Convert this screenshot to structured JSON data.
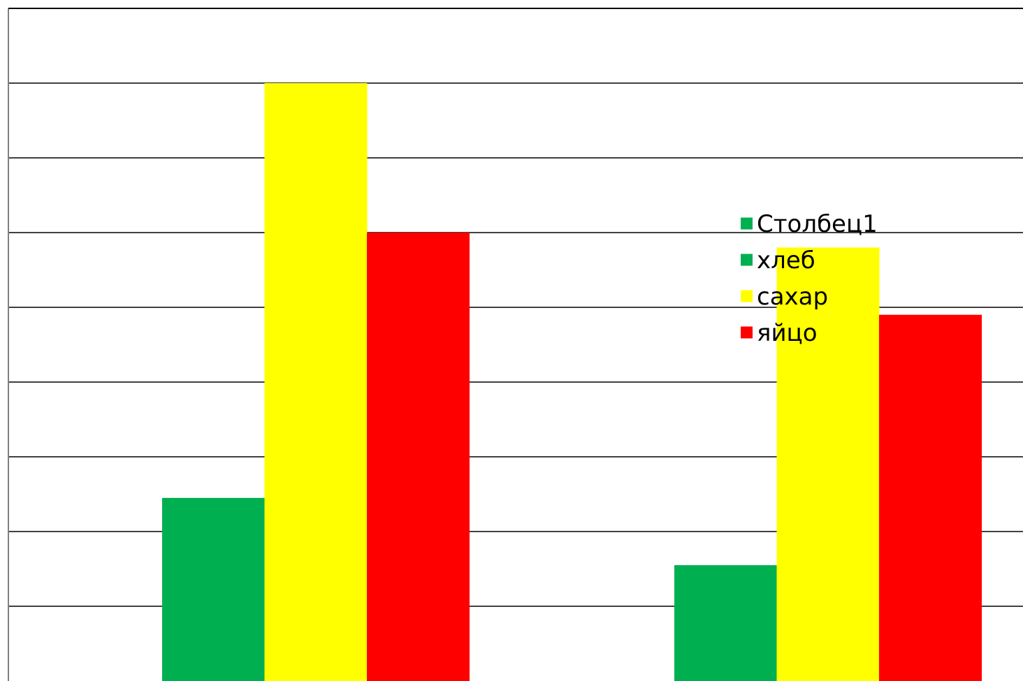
{
  "chart_data": {
    "type": "bar",
    "title": "",
    "xlabel": "",
    "ylabel": "",
    "categories": [
      "",
      ""
    ],
    "series": [
      {
        "name": "Столбец1",
        "color": "#00B050",
        "values": [
          0,
          0
        ]
      },
      {
        "name": "хлеб",
        "color": "#00B050",
        "values": [
          2.45,
          1.55
        ]
      },
      {
        "name": "сахар",
        "color": "#FFFF00",
        "values": [
          8.0,
          5.8
        ]
      },
      {
        "name": "яйцо",
        "color": "#FF0000",
        "values": [
          6.0,
          4.9
        ]
      }
    ],
    "ylim": [
      0,
      9
    ],
    "grid": true,
    "legend_position": "right",
    "gridline_color": "#404040",
    "axis_color": "#000000"
  }
}
